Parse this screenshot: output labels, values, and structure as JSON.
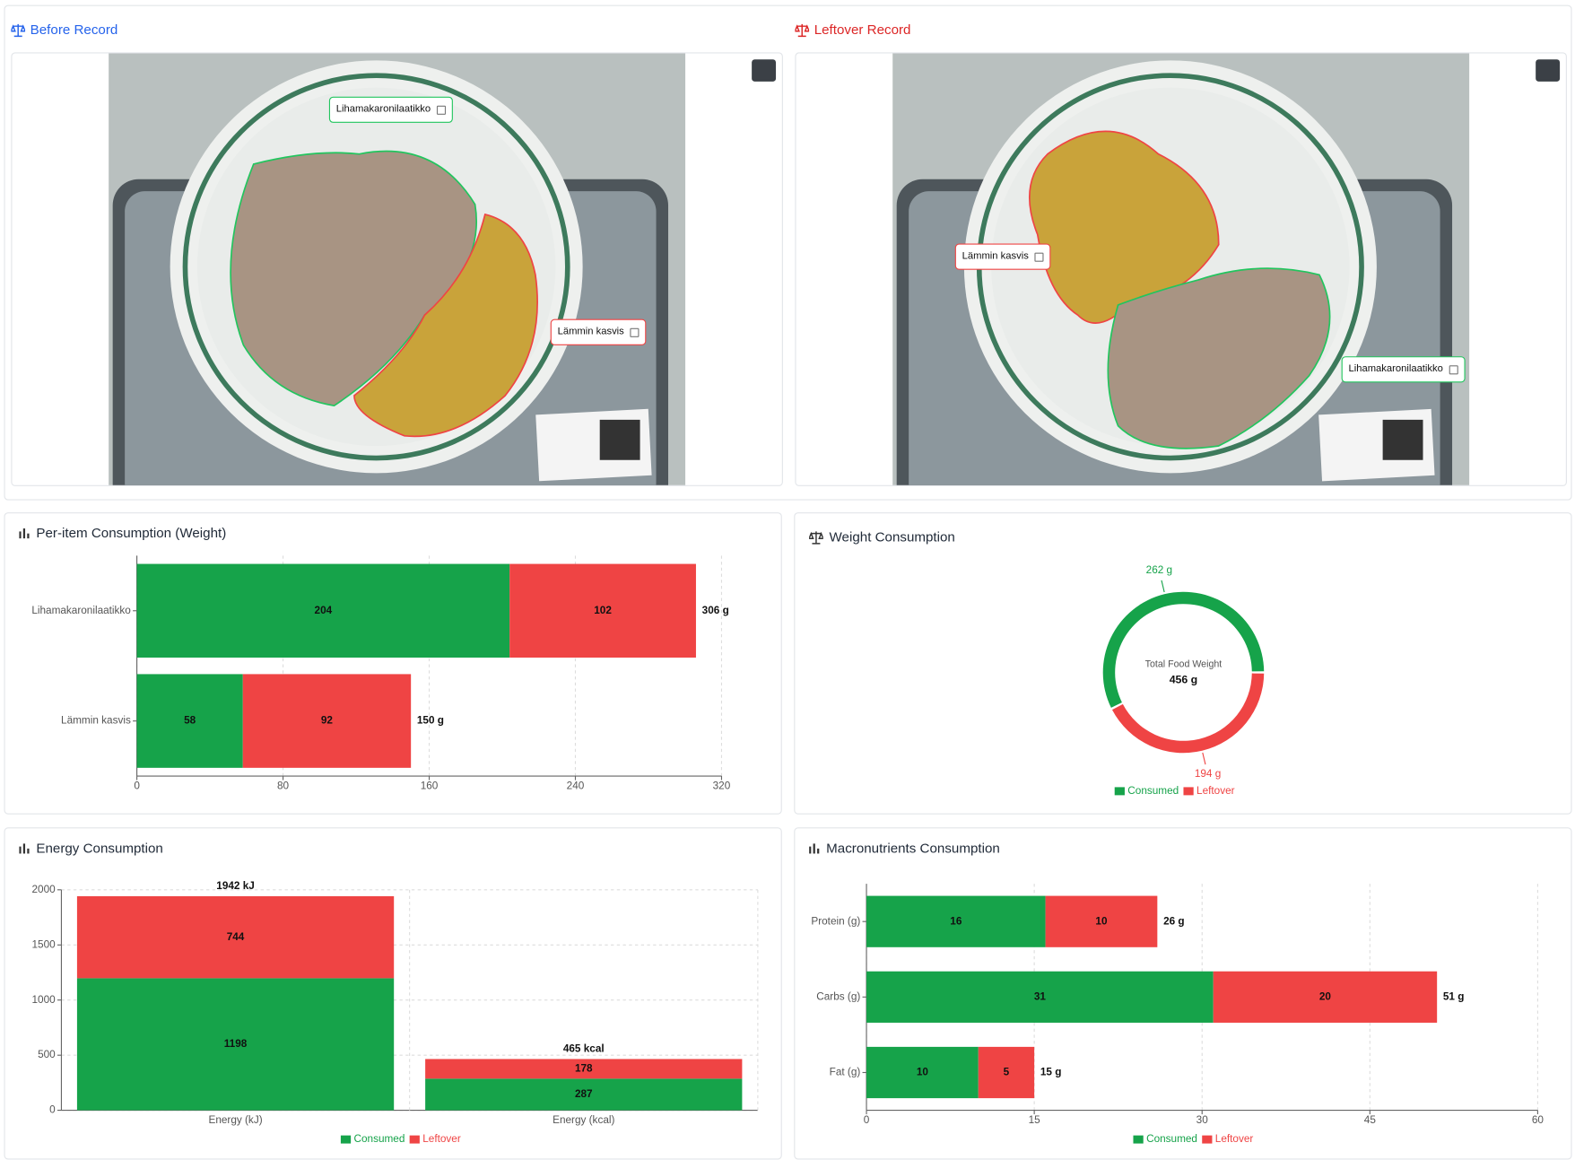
{
  "panels": [
    {
      "title": "Before Record",
      "tags": [
        "Lihamakaronilaatikko",
        "Lämmin kasvis"
      ]
    },
    {
      "title": "Leftover Record",
      "tags": [
        "Lämmin kasvis",
        "Lihamakaronilaatikko"
      ]
    }
  ],
  "chart_data": [
    {
      "type": "hbar",
      "title": "Per-item Consumption (Weight)",
      "categories": [
        "Lihamakaronilaatikko",
        "Lämmin kasvis"
      ],
      "series": [
        {
          "color": "#16a34a",
          "values": [
            204,
            58
          ]
        },
        {
          "color": "#ef4444",
          "values": [
            102,
            92
          ]
        }
      ],
      "totals": [
        306,
        150
      ],
      "total_labels": [
        "306 g",
        "150 g"
      ],
      "xlim": [
        0,
        320
      ],
      "xticks": [
        0,
        80,
        160,
        240,
        320
      ],
      "grid": true
    },
    {
      "type": "donut",
      "title": "Weight Consumption",
      "categories": [
        "Consumed",
        "Leftover"
      ],
      "values": [
        262,
        194
      ],
      "value_labels": [
        "262 g",
        "194 g"
      ],
      "colors": [
        "#16a34a",
        "#ef4444"
      ],
      "center_label": "Total Food Weight",
      "total": 456,
      "total_label": "456 g",
      "legend": "bottom"
    },
    {
      "type": "vbar",
      "title": "Energy Consumption",
      "categories": [
        "Energy (kJ)",
        "Energy (kcal)"
      ],
      "series": [
        {
          "name": "Consumed",
          "color": "#16a34a",
          "values": [
            1198,
            287
          ]
        },
        {
          "name": "Leftover",
          "color": "#ef4444",
          "values": [
            744,
            178
          ]
        }
      ],
      "totals": [
        1942,
        465
      ],
      "total_labels": [
        "1942 kJ",
        "465 kcal"
      ],
      "ylim": [
        0,
        2000
      ],
      "yticks": [
        0,
        500,
        1000,
        1500,
        2000
      ],
      "grid": true,
      "legend": "bottom"
    },
    {
      "type": "hbar",
      "title": "Macronutrients Consumption",
      "categories": [
        "Protein (g)",
        "Carbs (g)",
        "Fat (g)"
      ],
      "series": [
        {
          "name": "Consumed",
          "color": "#16a34a",
          "values": [
            16,
            31,
            10
          ]
        },
        {
          "name": "Leftover",
          "color": "#ef4444",
          "values": [
            10,
            20,
            5
          ]
        }
      ],
      "totals": [
        26,
        51,
        15
      ],
      "total_labels": [
        "26 g",
        "51 g",
        "15 g"
      ],
      "xlim": [
        0,
        60
      ],
      "xticks": [
        0,
        15,
        30,
        45,
        60
      ],
      "grid": true,
      "legend": "bottom"
    }
  ]
}
